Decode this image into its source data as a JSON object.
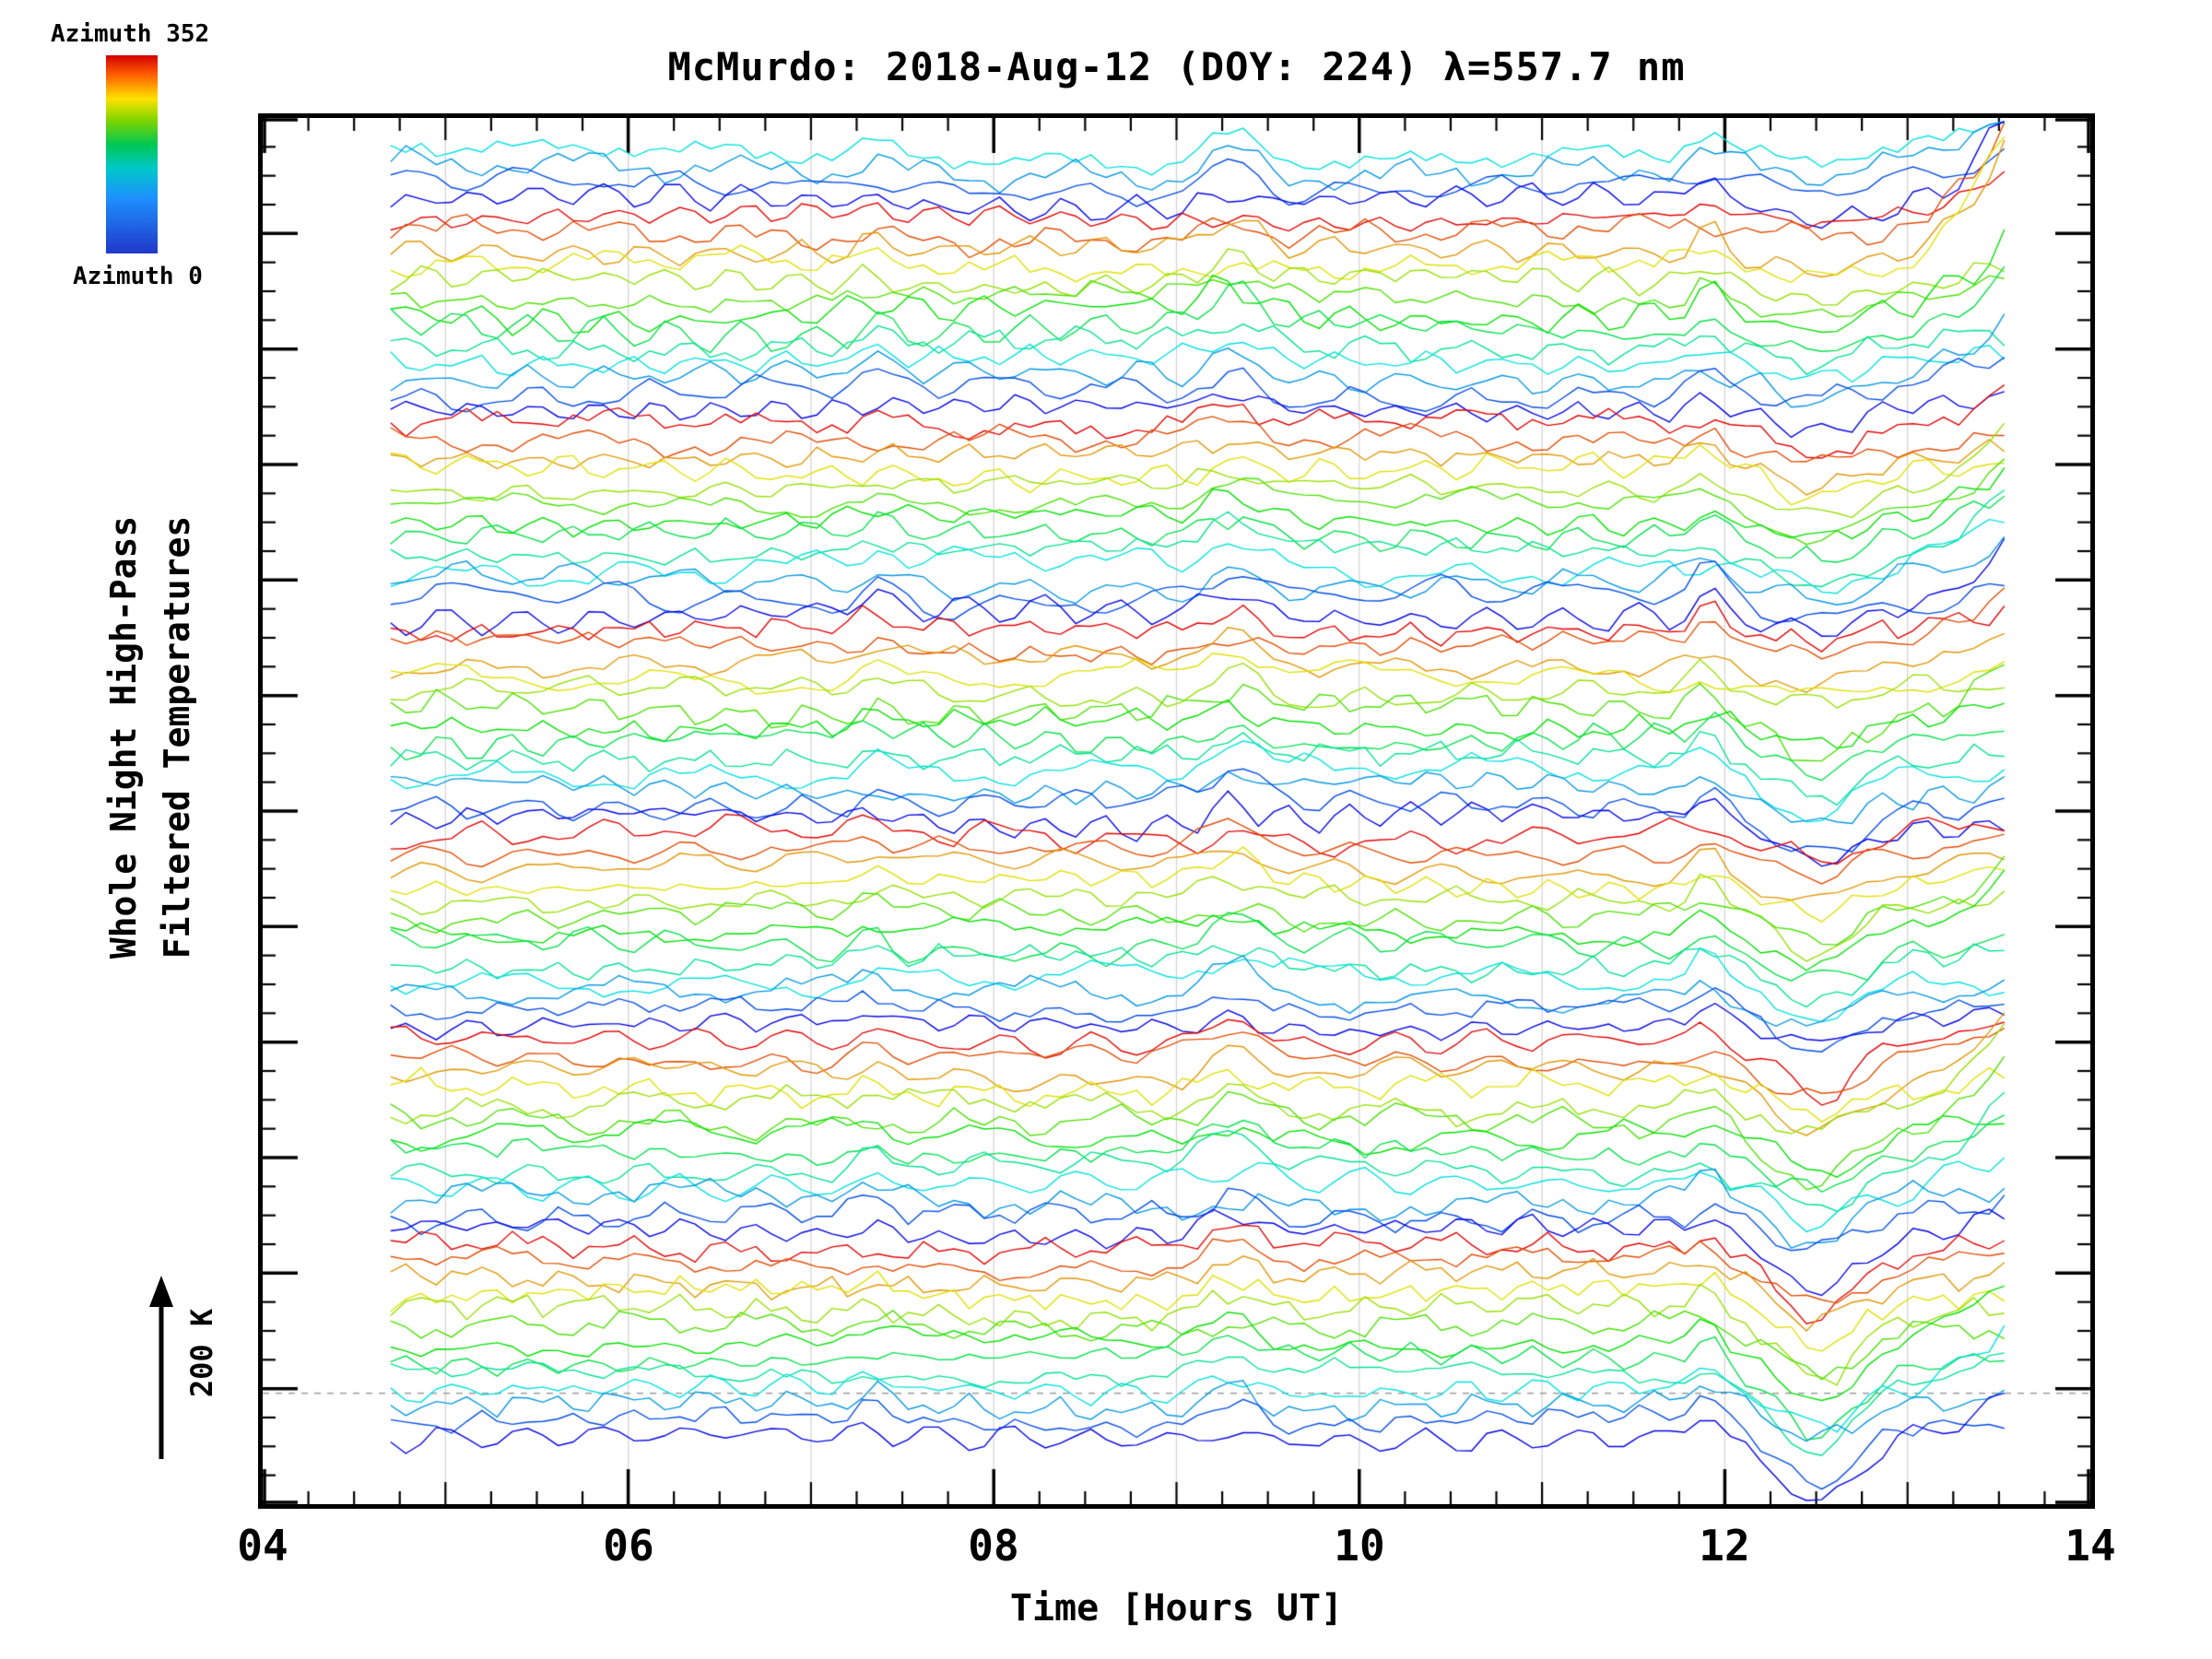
{
  "chart_data": {
    "type": "line",
    "title": "McMurdo: 2018-Aug-12 (DOY: 224) λ=557.7 nm",
    "xlabel": "Time [Hours UT]",
    "ylabel_line1": "Whole Night High-Pass",
    "ylabel_line2": "Filtered Temperatures",
    "xlim": [
      4,
      14
    ],
    "x_tick_labels": [
      "04",
      "06",
      "08",
      "10",
      "12",
      "14"
    ],
    "x_major_step": 2,
    "x_minor_step": 0.25,
    "grid_hours": [
      5,
      6,
      7,
      8,
      9,
      10,
      11,
      12,
      13
    ],
    "legend_position": "top-left colorbar",
    "grid": "faint vertical lines at each hour, dashed horizontal reference line near bottom",
    "colorbar": {
      "top_label": "Azimuth 352",
      "bottom_label": "Azimuth 0",
      "stops": [
        [
          "#d40000",
          0
        ],
        [
          "#ff6000",
          10
        ],
        [
          "#ffe200",
          22
        ],
        [
          "#7fd400",
          33
        ],
        [
          "#00c853",
          45
        ],
        [
          "#00c8c8",
          57
        ],
        [
          "#1e90ff",
          72
        ],
        [
          "#2038c8",
          100
        ]
      ]
    },
    "scale_bar_label": "200 K",
    "scale_bar_kelvin": 200,
    "traces": {
      "count": 82,
      "x_start": 4.7,
      "x_end": 13.55,
      "x_step": 0.0833,
      "groups": 6,
      "group_azimuths": [
        352,
        323,
        293,
        264,
        235,
        205,
        176,
        147,
        117,
        88,
        59,
        29,
        0
      ],
      "partial_top_group": [
        88,
        59,
        29,
        0
      ],
      "colormap": "azimuth 0 = blue, azimuth 352 = red (rainbow)",
      "seed": 224,
      "shared_features": {
        "bump_hour": 9.3,
        "small_bump_hour": 7.35,
        "spike_hour": 11.9,
        "dip_hour": 12.5,
        "end_rise_after_hour": 12.9
      },
      "baseline_dashed_y_frac": 0.92
    }
  }
}
